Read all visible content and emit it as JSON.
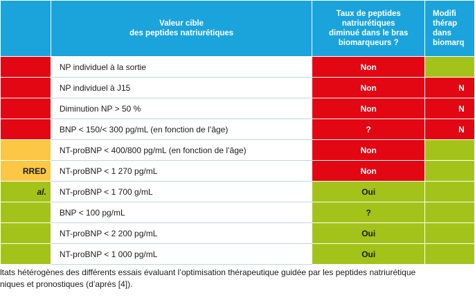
{
  "header": {
    "col0": "",
    "col1": "Valeur cible\ndes peptides natriurétiques",
    "col2": "Taux de peptides\nnatriurétiques\ndiminué dans le bras\nbiomarqueurs ?",
    "col3": "Modifi\nthérap\ndans\nbiomarq"
  },
  "rows": [
    {
      "c0": "",
      "c0_color": "red",
      "target": "NP individuel à la sortie",
      "decreased": "Non",
      "dec_color": "red",
      "modif": "",
      "mod_color": "green"
    },
    {
      "c0": "",
      "c0_color": "red",
      "target": "NP individuel à J15",
      "decreased": "Non",
      "dec_color": "red",
      "modif": "N",
      "mod_color": "red"
    },
    {
      "c0": "",
      "c0_color": "red",
      "target": "Diminution NP > 50 %",
      "decreased": "Non",
      "dec_color": "red",
      "modif": "N",
      "mod_color": "red"
    },
    {
      "c0": "",
      "c0_color": "red",
      "target": "BNP < 150/< 300 pg/mL (en fonction de l’âge)",
      "decreased": "?",
      "dec_color": "red",
      "modif": "N",
      "mod_color": "red"
    },
    {
      "c0": "",
      "c0_color": "yellow",
      "target": "NT-proBNP < 400/800 pg/mL (en fonction de l’âge)",
      "decreased": "Non",
      "dec_color": "red",
      "modif": "",
      "mod_color": "green"
    },
    {
      "c0": "RRED",
      "c0_color": "yellow",
      "target": "NT-proBNP < 1 270 pg/mL",
      "decreased": "Non",
      "dec_color": "red",
      "modif": "",
      "mod_color": "green"
    },
    {
      "c0": "al.",
      "c0_color": "green",
      "target": "NT-proBNP < 1 700 g/mL",
      "decreased": "Oui",
      "dec_color": "green",
      "modif": "",
      "mod_color": "green"
    },
    {
      "c0": "",
      "c0_color": "green",
      "target": "BNP < 100 pg/mL",
      "decreased": "?",
      "dec_color": "green",
      "modif": "",
      "mod_color": "green"
    },
    {
      "c0": "",
      "c0_color": "green",
      "target": "NT-proBNP < 2 200 pg/mL",
      "decreased": "Oui",
      "dec_color": "green",
      "modif": "",
      "mod_color": "green"
    },
    {
      "c0": "",
      "c0_color": "green",
      "target": "NT-proBNP < 1 000 pg/mL",
      "decreased": "Oui",
      "dec_color": "green",
      "modif": "",
      "mod_color": "green"
    }
  ],
  "caption": {
    "line1": "ltats hétérogènes des différents essais évaluant l’optimisation thérapeutique guidée par les peptides natriurétique",
    "line2": "niques et pronostiques (d’après [4])."
  },
  "colors": {
    "header": "#1ba3dc",
    "red": "#e30613",
    "yellow": "#fbc744",
    "green": "#a4c31a"
  }
}
